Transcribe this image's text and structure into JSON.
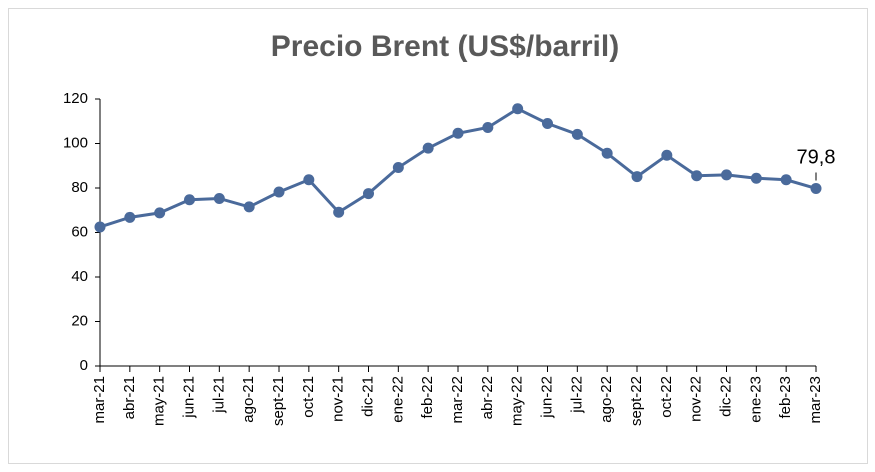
{
  "chart_data": {
    "type": "line",
    "title": "Precio Brent (US$/barril)",
    "categories": [
      "mar-21",
      "abr-21",
      "may-21",
      "jun-21",
      "jul-21",
      "ago-21",
      "sept-21",
      "oct-21",
      "nov-21",
      "dic-21",
      "ene-22",
      "feb-22",
      "mar-22",
      "abr-22",
      "may-22",
      "jun-22",
      "jul-22",
      "ago-22",
      "sept-22",
      "oct-22",
      "nov-22",
      "dic-22",
      "ene-23",
      "feb-23",
      "mar-23"
    ],
    "series": [
      {
        "name": "Precio Brent",
        "color": "#4a6a9b",
        "values": [
          62.5,
          66.8,
          68.8,
          74.7,
          75.3,
          71.5,
          78.2,
          83.7,
          69.1,
          77.5,
          89.2,
          97.9,
          104.6,
          107.2,
          115.6,
          109.0,
          104.1,
          95.6,
          85.1,
          94.7,
          85.5,
          85.9,
          84.4,
          83.7,
          79.8
        ],
        "value_labels": [
          null,
          null,
          null,
          null,
          null,
          null,
          null,
          null,
          null,
          null,
          null,
          null,
          null,
          null,
          null,
          null,
          null,
          null,
          null,
          null,
          null,
          null,
          null,
          null,
          "79,8"
        ]
      }
    ],
    "ylim": [
      0,
      120
    ],
    "yticks": [
      0,
      20,
      40,
      60,
      80,
      100,
      120
    ],
    "grid": false
  }
}
